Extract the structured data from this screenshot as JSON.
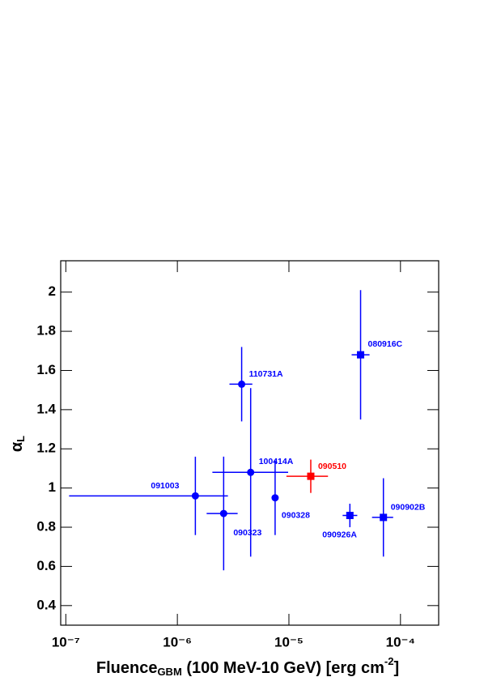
{
  "chart_data": {
    "type": "scatter",
    "x_scale": "log",
    "x_label": {
      "main": "Fluence",
      "sub": "GBM",
      "rest": " (100 MeV-10 GeV) [erg cm",
      "sup": "-2",
      "end": "]"
    },
    "y_label": {
      "main": "α",
      "sub": "L"
    },
    "xlim": [
      9e-08,
      0.00022
    ],
    "ylim": [
      0.3,
      2.16
    ],
    "xticks": [
      {
        "value": 1e-07,
        "label": "10⁻⁷"
      },
      {
        "value": 1e-06,
        "label": "10⁻⁶"
      },
      {
        "value": 1e-05,
        "label": "10⁻⁵"
      },
      {
        "value": 0.0001,
        "label": "10⁻⁴"
      }
    ],
    "yticks": [
      0.4,
      0.6,
      0.8,
      1,
      1.2,
      1.4,
      1.6,
      1.8,
      2
    ],
    "points": [
      {
        "label": "091003",
        "x": 1.45e-06,
        "x_low": 1.07e-07,
        "x_high": 2.84e-06,
        "y": 0.96,
        "y_err": 0.2,
        "marker": "circle",
        "color": "#0000ff"
      },
      {
        "label": "090323",
        "x": 2.6e-06,
        "x_low": 1.83e-06,
        "x_high": 3.47e-06,
        "y": 0.87,
        "y_err": 0.29,
        "marker": "circle",
        "color": "#0000ff"
      },
      {
        "label": "110731A",
        "x": 3.77e-06,
        "x_low": 2.93e-06,
        "x_high": 4.7e-06,
        "y": 1.53,
        "y_err": 0.19,
        "marker": "circle",
        "color": "#0000ff"
      },
      {
        "label": "100414A",
        "x": 4.54e-06,
        "x_low": 2.06e-06,
        "x_high": 9.84e-06,
        "y": 1.08,
        "y_err": 0.43,
        "marker": "circle",
        "color": "#0000ff"
      },
      {
        "label": "090328",
        "x": 7.52e-06,
        "x_low": 7.3e-06,
        "x_high": 7.75e-06,
        "y": 0.95,
        "y_err": 0.19,
        "marker": "circle",
        "color": "#0000ff"
      },
      {
        "label": "090510",
        "x": 1.57e-05,
        "x_low": 9.5e-06,
        "x_high": 2.24e-05,
        "y": 1.06,
        "y_err": 0.085,
        "marker": "square",
        "color": "#ff0000"
      },
      {
        "label": "080916C",
        "x": 4.39e-05,
        "x_low": 3.65e-05,
        "x_high": 5.28e-05,
        "y": 1.68,
        "y_err": 0.33,
        "marker": "square",
        "color": "#0000ff"
      },
      {
        "label": "090926A",
        "x": 3.52e-05,
        "x_low": 3.03e-05,
        "x_high": 4.1e-05,
        "y": 0.86,
        "y_err": 0.06,
        "marker": "square",
        "color": "#0000ff"
      },
      {
        "label": "090902B",
        "x": 7.03e-05,
        "x_low": 5.56e-05,
        "x_high": 8.6e-05,
        "y": 0.85,
        "y_err": 0.2,
        "marker": "square",
        "color": "#0000ff"
      }
    ]
  }
}
